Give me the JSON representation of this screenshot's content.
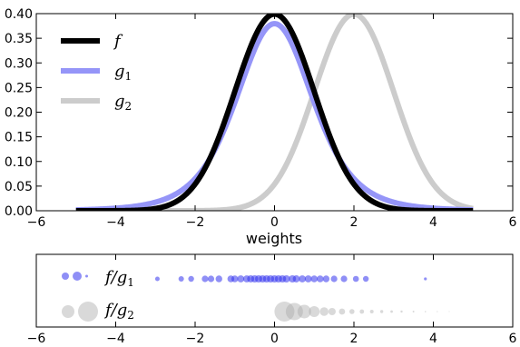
{
  "chart_data": [
    {
      "type": "line",
      "xlabel": "weights",
      "ylabel": "",
      "xlim": [
        -6,
        6
      ],
      "ylim": [
        0,
        0.4
      ],
      "x_ticks": [
        "−6",
        "−4",
        "−2",
        "0",
        "2",
        "4",
        "6"
      ],
      "y_ticks": [
        "0.00",
        "0.05",
        "0.10",
        "0.15",
        "0.20",
        "0.25",
        "0.30",
        "0.35",
        "0.40"
      ],
      "legend_position": "upper-left",
      "x_domain": [
        -5,
        5
      ],
      "series": [
        {
          "name": "f",
          "name_base": "f",
          "name_sub": "",
          "color": "#000000",
          "distribution": "normal",
          "mean": 0,
          "sd": 1,
          "peak": 0.399
        },
        {
          "name": "g1",
          "name_base": "g",
          "name_sub": "1",
          "color": "#9595f8",
          "distribution": "student-t",
          "df": 5,
          "mean": 0,
          "peak": 0.38
        },
        {
          "name": "g2",
          "name_base": "g",
          "name_sub": "2",
          "color": "#cccccc",
          "distribution": "normal",
          "mean": 2,
          "sd": 1,
          "peak": 0.399
        }
      ]
    },
    {
      "type": "scatter",
      "xlim": [
        -6,
        6
      ],
      "x_ticks": [
        "−6",
        "−4",
        "−2",
        "0",
        "2",
        "4",
        "6"
      ],
      "legend_position": "left",
      "series": [
        {
          "name": "f/g1",
          "name_base": "f/g",
          "name_sub": "1",
          "color": "#3333ee",
          "row": 1,
          "points": [
            [
              -2.95,
              2.5
            ],
            [
              -2.35,
              3.0
            ],
            [
              -2.1,
              3.2
            ],
            [
              -1.75,
              3.6
            ],
            [
              -1.6,
              3.6
            ],
            [
              -1.4,
              3.7
            ],
            [
              -1.1,
              3.8
            ],
            [
              -1.0,
              3.8
            ],
            [
              -0.85,
              3.9
            ],
            [
              -0.7,
              3.9
            ],
            [
              -0.6,
              3.95
            ],
            [
              -0.5,
              4.0
            ],
            [
              -0.4,
              4.0
            ],
            [
              -0.3,
              4.0
            ],
            [
              -0.2,
              4.0
            ],
            [
              -0.1,
              4.0
            ],
            [
              0.0,
              4.0
            ],
            [
              0.1,
              4.0
            ],
            [
              0.2,
              4.0
            ],
            [
              0.3,
              4.0
            ],
            [
              0.45,
              4.0
            ],
            [
              0.55,
              3.95
            ],
            [
              0.7,
              3.9
            ],
            [
              0.85,
              3.9
            ],
            [
              1.0,
              3.8
            ],
            [
              1.15,
              3.8
            ],
            [
              1.3,
              3.7
            ],
            [
              1.5,
              3.6
            ],
            [
              1.75,
              3.6
            ],
            [
              2.05,
              3.3
            ],
            [
              2.3,
              3.2
            ],
            [
              3.8,
              1.6
            ]
          ]
        },
        {
          "name": "f/g2",
          "name_base": "f/g",
          "name_sub": "2",
          "color": "#aaaaaa",
          "row": 2,
          "points": [
            [
              0.25,
              11.0
            ],
            [
              0.5,
              9.5
            ],
            [
              0.75,
              7.5
            ],
            [
              1.0,
              6.0
            ],
            [
              1.25,
              4.8
            ],
            [
              1.45,
              4.0
            ],
            [
              1.7,
              3.4
            ],
            [
              1.95,
              2.8
            ],
            [
              2.2,
              2.4
            ],
            [
              2.45,
              2.0
            ],
            [
              2.7,
              1.7
            ],
            [
              2.95,
              1.4
            ],
            [
              3.2,
              1.2
            ],
            [
              3.5,
              1.0
            ],
            [
              3.8,
              0.8
            ],
            [
              4.1,
              0.6
            ],
            [
              4.4,
              0.5
            ]
          ]
        }
      ],
      "legend_marker_sizes": {
        "f/g1": [
          4,
          5,
          1.5
        ],
        "f/g2": [
          7,
          11
        ]
      }
    }
  ]
}
